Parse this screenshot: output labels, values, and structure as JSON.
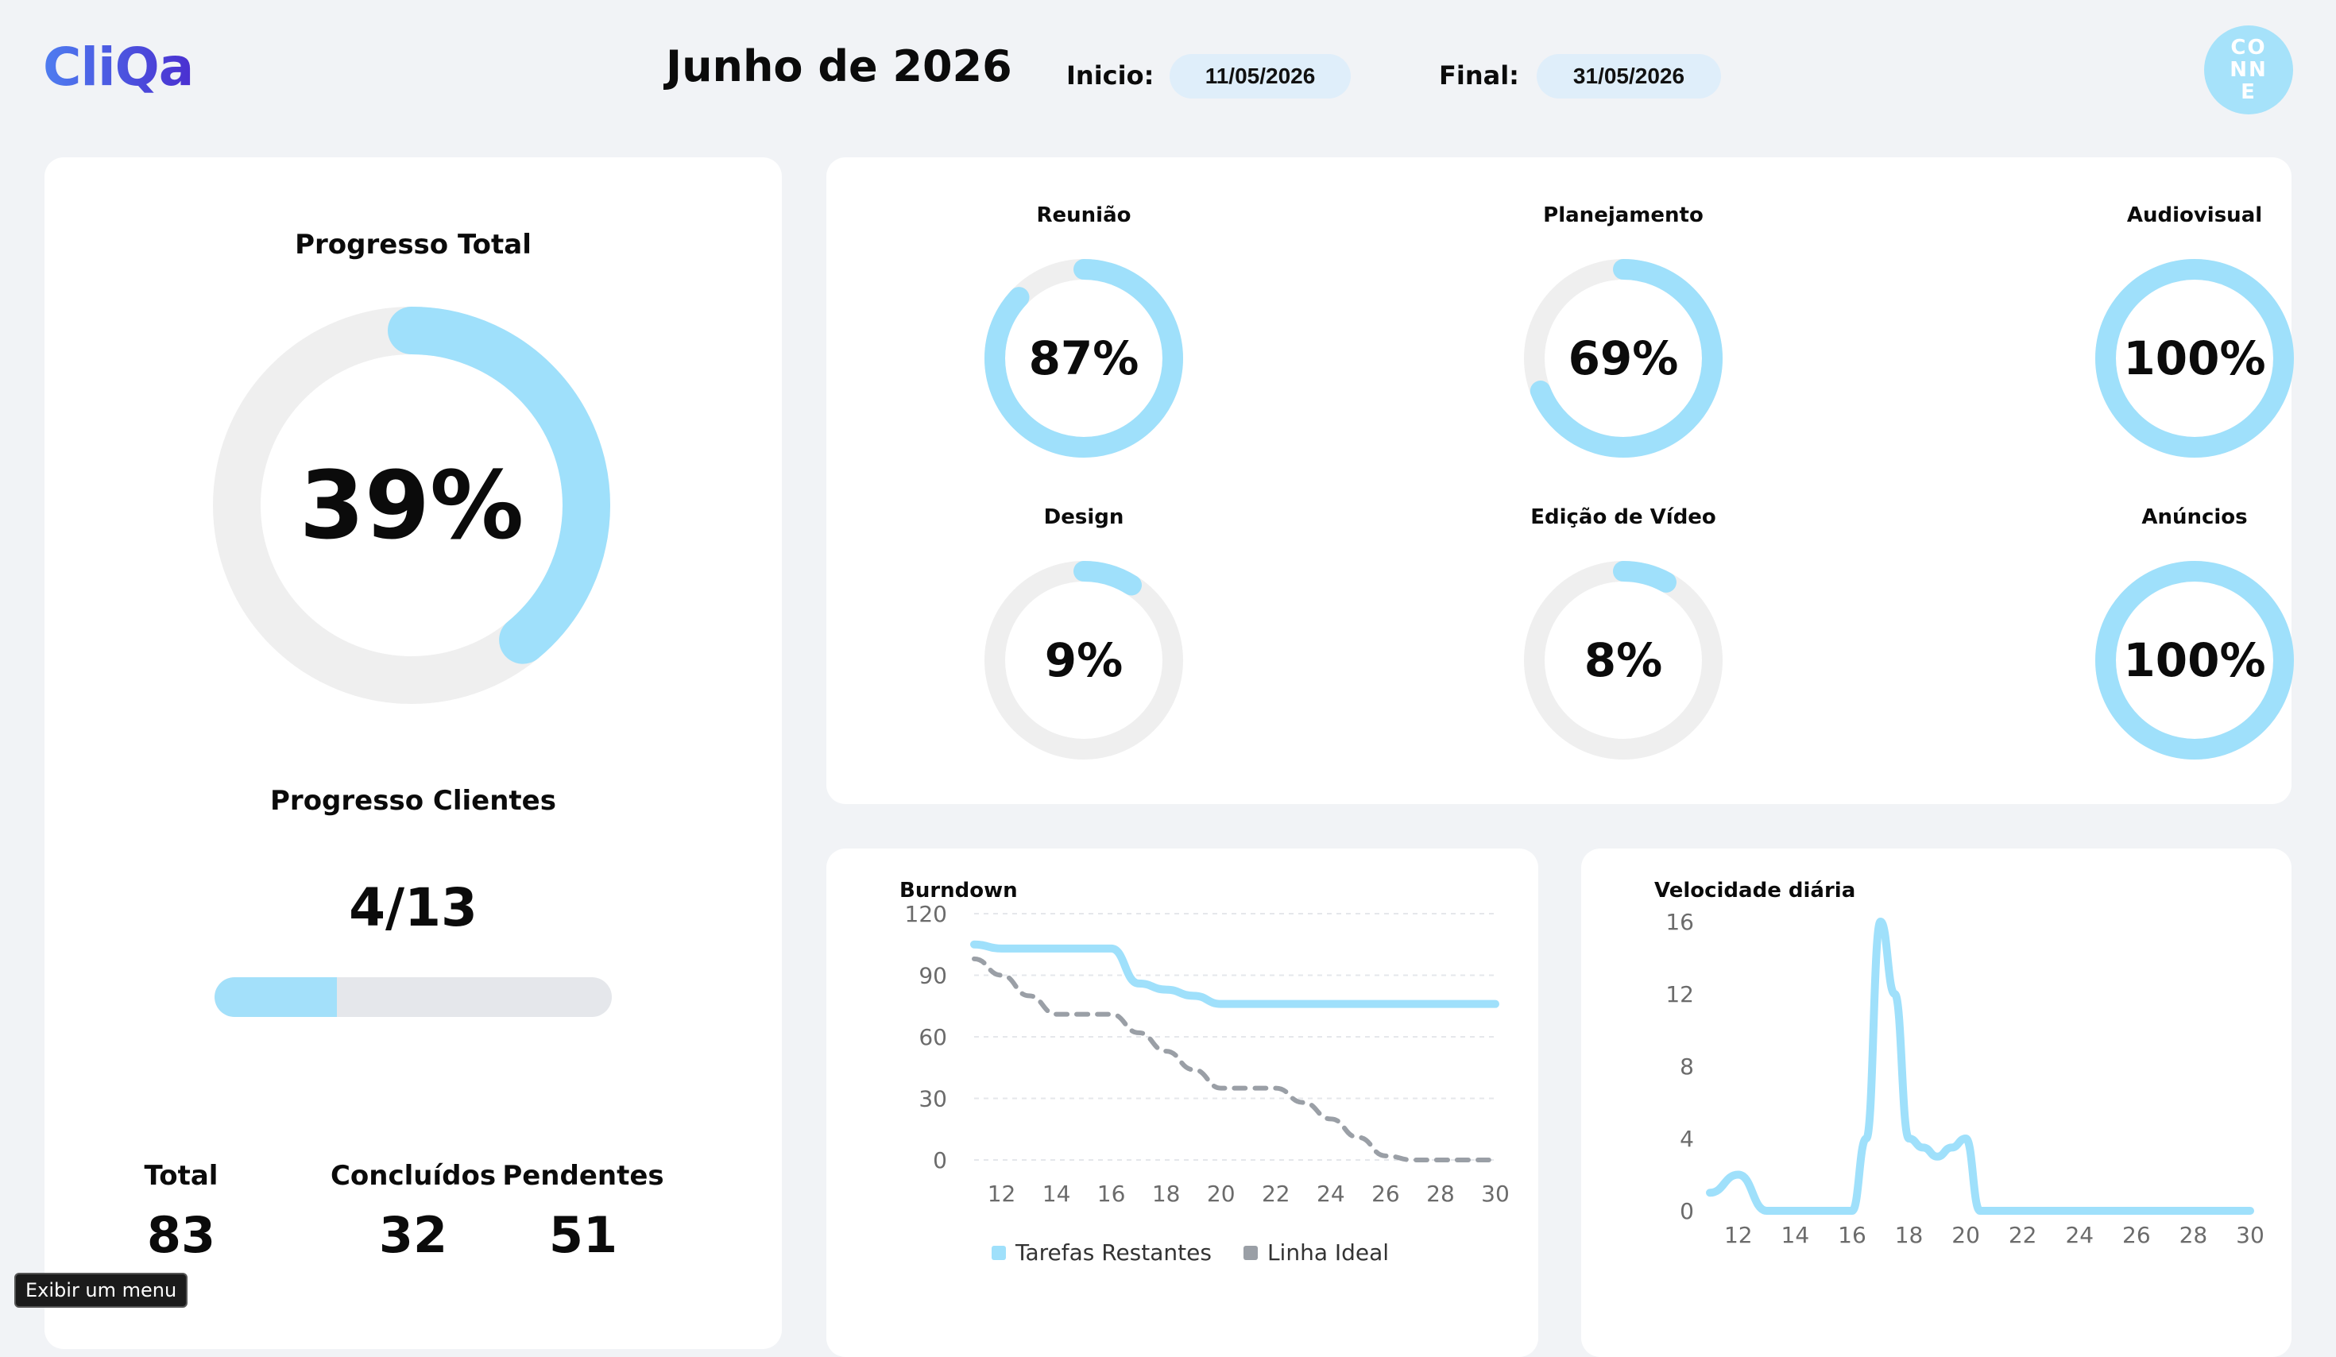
{
  "header": {
    "logo": "CliQa",
    "month": "Junho de 2026",
    "start_label": "Inicio:",
    "start_date": "11/05/2026",
    "end_label": "Final:",
    "end_date": "31/05/2026",
    "avatar_lines": [
      "CO",
      "NN",
      "E"
    ]
  },
  "total_progress": {
    "title": "Progresso Total",
    "percent": 39,
    "percent_label": "39%"
  },
  "clients_progress": {
    "title": "Progresso Clientes",
    "value_label": "4/13",
    "fraction": 0.3077
  },
  "stats": {
    "total_label": "Total",
    "total": "83",
    "done_label": "Concluídos",
    "done": "32",
    "pending_label": "Pendentes",
    "pending": "51"
  },
  "categories": [
    {
      "title": "Reunião",
      "percent": 87,
      "label": "87%"
    },
    {
      "title": "Planejamento",
      "percent": 69,
      "label": "69%"
    },
    {
      "title": "Audiovisual",
      "percent": 100,
      "label": "100%"
    },
    {
      "title": "Design",
      "percent": 9,
      "label": "9%"
    },
    {
      "title": "Edição de Vídeo",
      "percent": 8,
      "label": "8%"
    },
    {
      "title": "Anúncios",
      "percent": 100,
      "label": "100%"
    }
  ],
  "colors": {
    "accent": "#9fe0fb",
    "track": "#efefef",
    "ideal": "#9a9fa6",
    "grid": "#e5e7eb",
    "tick": "#6b6b6b"
  },
  "chart_data": [
    {
      "type": "line",
      "title": "Burndown",
      "x": [
        11,
        12,
        13,
        14,
        15,
        16,
        17,
        18,
        19,
        20,
        21,
        22,
        23,
        24,
        25,
        26,
        27,
        28,
        29,
        30
      ],
      "xticks": [
        "12",
        "14",
        "16",
        "18",
        "20",
        "22",
        "24",
        "26",
        "28",
        "30"
      ],
      "yticks": [
        "0",
        "30",
        "60",
        "90",
        "120"
      ],
      "ylim": [
        0,
        120
      ],
      "xlim": [
        11,
        30
      ],
      "series": [
        {
          "name": "Tarefas Restantes",
          "color": "#9fe0fb",
          "dashed": false,
          "values": [
            105,
            103,
            103,
            103,
            103,
            103,
            86,
            83,
            80,
            76,
            76,
            76,
            76,
            76,
            76,
            76,
            76,
            76,
            76,
            76
          ]
        },
        {
          "name": "Linha Ideal",
          "color": "#9a9fa6",
          "dashed": true,
          "values": [
            98,
            90,
            80,
            71,
            71,
            71,
            62,
            53,
            44,
            35,
            35,
            35,
            28,
            20,
            11,
            2,
            0,
            0,
            0,
            0
          ]
        }
      ],
      "legend": [
        "Tarefas Restantes",
        "Linha Ideal"
      ],
      "legend_position": "bottom"
    },
    {
      "type": "line",
      "title": "Velocidade diária",
      "x": [
        11,
        12,
        13,
        14,
        15,
        16,
        16.5,
        17,
        17.5,
        18,
        18.5,
        19,
        19.5,
        20,
        20.5,
        21,
        22,
        23,
        24,
        25,
        26,
        27,
        28,
        29,
        30
      ],
      "xticks": [
        "12",
        "14",
        "16",
        "18",
        "20",
        "22",
        "24",
        "26",
        "28",
        "30"
      ],
      "yticks": [
        "0",
        "4",
        "8",
        "12",
        "16"
      ],
      "ylim": [
        0,
        16
      ],
      "xlim": [
        11,
        30
      ],
      "series": [
        {
          "color": "#9fe0fb",
          "dashed": false,
          "values": [
            1,
            2,
            0,
            0,
            0,
            0,
            4,
            16,
            12,
            4,
            3.5,
            3,
            3.5,
            4,
            0,
            0,
            0,
            0,
            0,
            0,
            0,
            0,
            0,
            0,
            0
          ]
        }
      ]
    }
  ],
  "tooltip": "Exibir um menu"
}
